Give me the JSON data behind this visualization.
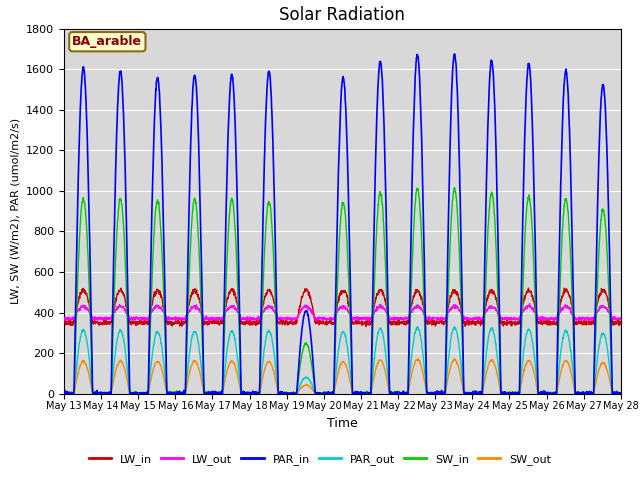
{
  "title": "Solar Radiation",
  "ylabel": "LW, SW (W/m2), PAR (umol/m2/s)",
  "xlabel": "Time",
  "annotation": "BA_arable",
  "ylim": [
    0,
    1800
  ],
  "n_days": 15,
  "start_day": 13,
  "background_color": "#d8d8d8",
  "lines": {
    "LW_in": {
      "color": "#cc0000",
      "lw": 1.0
    },
    "LW_out": {
      "color": "#ff00ff",
      "lw": 1.0
    },
    "PAR_in": {
      "color": "#0000ff",
      "lw": 1.2
    },
    "PAR_out": {
      "color": "#00cccc",
      "lw": 1.0
    },
    "SW_in": {
      "color": "#00cc00",
      "lw": 1.0
    },
    "SW_out": {
      "color": "#ff8800",
      "lw": 1.0
    }
  }
}
